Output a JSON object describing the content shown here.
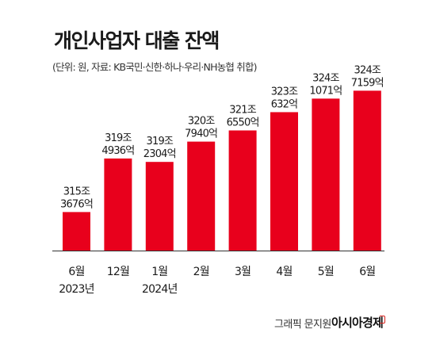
{
  "title": "개인사업자 대출 잔액",
  "subtitle": "(단위: 원, 자료: KB국민·신한·하나·우리·NH농협 취합)",
  "credit": "그래픽 문지원",
  "brand": "아시아경제",
  "chart_data": {
    "type": "bar",
    "title": "개인사업자 대출 잔액",
    "unit": "원",
    "categories": [
      "6월",
      "12월",
      "1월",
      "2월",
      "3월",
      "4월",
      "5월",
      "6월"
    ],
    "year_labels": [
      "2023년",
      "",
      "2024년",
      "",
      "",
      "",
      "",
      ""
    ],
    "values": [
      315.3676,
      319.4936,
      319.2304,
      320.794,
      321.655,
      323.0632,
      324.1071,
      324.7159
    ],
    "value_labels": [
      [
        "315조",
        "3676억"
      ],
      [
        "319조",
        "4936억"
      ],
      [
        "319조",
        "2304억"
      ],
      [
        "320조",
        "7940억"
      ],
      [
        "321조",
        "6550억"
      ],
      [
        "323조",
        "632억"
      ],
      [
        "324조",
        "1071억"
      ],
      [
        "324조",
        "7159억"
      ]
    ],
    "bar_color": "#e8001c",
    "grid": false,
    "legend": "none"
  }
}
